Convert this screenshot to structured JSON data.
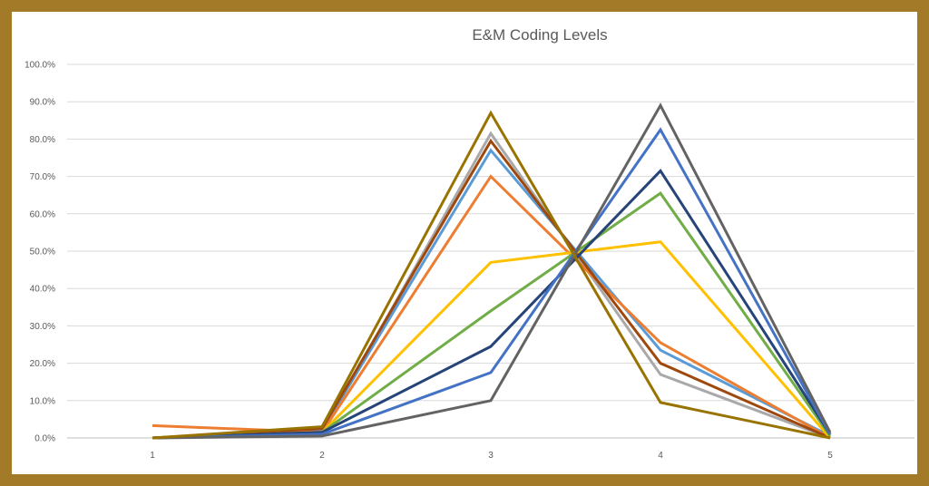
{
  "chart_data": {
    "type": "line",
    "title": "E&M Coding Levels",
    "xlabel": "",
    "ylabel": "",
    "categories": [
      "1",
      "2",
      "3",
      "4",
      "5"
    ],
    "ylim": [
      0,
      100
    ],
    "y_ticks": [
      "0.0%",
      "10.0%",
      "20.0%",
      "30.0%",
      "40.0%",
      "50.0%",
      "60.0%",
      "70.0%",
      "80.0%",
      "90.0%",
      "100.0%"
    ],
    "grid": true,
    "legend": "none",
    "series": [
      {
        "color": "#a9a9a9",
        "values": [
          0,
          1.5,
          81.5,
          17,
          0
        ]
      },
      {
        "color": "#5b9bd5",
        "values": [
          0,
          2.0,
          77,
          23.5,
          0.5
        ]
      },
      {
        "color": "#ed7d31",
        "values": [
          3.3,
          1.5,
          70,
          25.5,
          0
        ]
      },
      {
        "color": "#9e480e",
        "values": [
          0,
          2.5,
          79.5,
          20,
          0
        ]
      },
      {
        "color": "#ffc000",
        "values": [
          0,
          1.5,
          47,
          52.5,
          0
        ]
      },
      {
        "color": "#70ad47",
        "values": [
          0,
          1.5,
          34,
          65.5,
          0.5
        ]
      },
      {
        "color": "#264478",
        "values": [
          0,
          1.5,
          24.5,
          71.5,
          1
        ]
      },
      {
        "color": "#4472c4",
        "values": [
          0,
          1.0,
          17.5,
          82.5,
          1
        ]
      },
      {
        "color": "#636363",
        "values": [
          0,
          0.5,
          10,
          89,
          1.5
        ]
      },
      {
        "color": "#997300",
        "values": [
          0,
          3.0,
          87,
          9.5,
          0
        ]
      }
    ]
  }
}
